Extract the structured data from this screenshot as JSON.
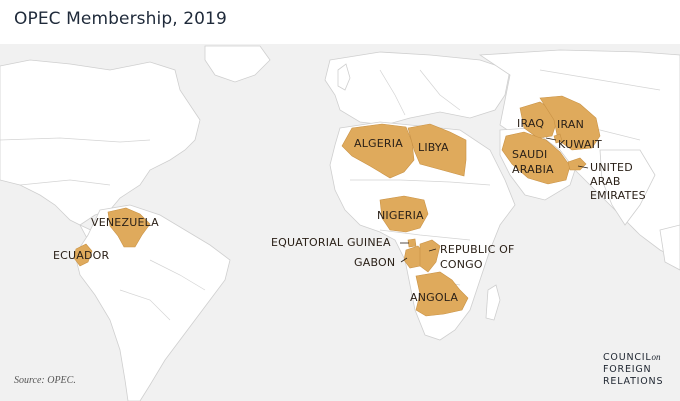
{
  "title": "OPEC Membership, 2019",
  "source": "Source: OPEC.",
  "logo": {
    "line1": "COUNCIL",
    "on": "on",
    "line2": "FOREIGN",
    "line3": "RELATIONS"
  },
  "colors": {
    "member": "#dfaa5c",
    "land": "#ffffff",
    "water": "#f1f1f1",
    "border": "#c9c9c9"
  },
  "countries": [
    "VENEZUELA",
    "ECUADOR",
    "ALGERIA",
    "LIBYA",
    "NIGERIA",
    "EQUATORIAL GUINEA",
    "GABON",
    "REPUBLIC OF",
    "CONGO",
    "ANGOLA",
    "IRAQ",
    "IRAN",
    "KUWAIT",
    "SAUDI",
    "ARABIA",
    "UNITED",
    "ARAB",
    "EMIRATES"
  ]
}
